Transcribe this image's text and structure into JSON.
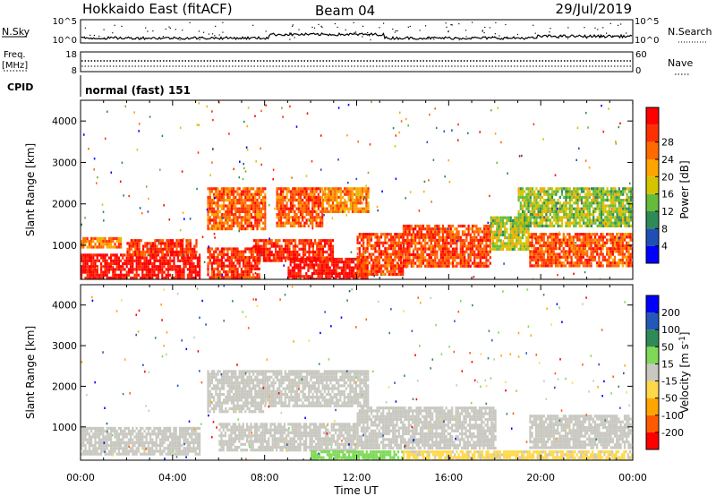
{
  "header": {
    "station": "Hokkaido East (fitACF)",
    "beam": "Beam 04",
    "date": "29/Jul/2019"
  },
  "summary_panel": {
    "nsky_label": "N.Sky",
    "nsearch_label": "N.Search",
    "freq_label_line1": "Freq.",
    "freq_label_line2": "[MHz]",
    "nave_label": "Nave",
    "cpid_label": "CPID",
    "cpid_value": "normal (fast) 151",
    "noise_top_tick": "10^5",
    "noise_bottom_tick": "10^0",
    "freq_ticks": [
      "18",
      "8"
    ],
    "nave_ticks": [
      "60",
      "0"
    ]
  },
  "colors": {
    "power_scale": [
      "#0000ff",
      "#1f4fb5",
      "#2e8b57",
      "#66bb3a",
      "#d4c400",
      "#ffa500",
      "#ff6a00",
      "#ff3000",
      "#ff0000"
    ],
    "velocity_scale": [
      "#ff0000",
      "#ff5a00",
      "#ffa500",
      "#ffd84a",
      "#c8c8c0",
      "#7ed957",
      "#2e8b57",
      "#2458b8",
      "#0000ff"
    ],
    "ground_scatter": "#c8c8c0"
  },
  "chart_data": [
    {
      "type": "heatmap",
      "title": "",
      "xlabel": "Time UT",
      "ylabel": "Slant Range [km]",
      "x_ticks": [
        "00:00",
        "04:00",
        "08:00",
        "12:00",
        "16:00",
        "20:00",
        "00:00"
      ],
      "y_ticks": [
        "1000",
        "2000",
        "3000",
        "4000"
      ],
      "xlim": [
        0,
        24
      ],
      "ylim": [
        180,
        4500
      ],
      "colorbar_label": "Power [dB]",
      "colorbar_ticks": [
        "4",
        "8",
        "12",
        "16",
        "20",
        "24",
        "28"
      ],
      "colorbar_range": [
        0,
        32
      ],
      "regions": [
        {
          "t0": 0.0,
          "t1": 5.2,
          "r0": 180,
          "r1": 800,
          "value": 30
        },
        {
          "t0": 0.0,
          "t1": 1.8,
          "r0": 950,
          "r1": 1200,
          "value": 22
        },
        {
          "t0": 2.0,
          "t1": 5.0,
          "r0": 750,
          "r1": 1150,
          "value": 27
        },
        {
          "t0": 5.5,
          "t1": 7.8,
          "r0": 200,
          "r1": 950,
          "value": 27
        },
        {
          "t0": 5.5,
          "t1": 8.0,
          "r0": 1400,
          "r1": 2400,
          "value": 24
        },
        {
          "t0": 8.5,
          "t1": 10.5,
          "r0": 1500,
          "r1": 2400,
          "value": 25
        },
        {
          "t0": 10.5,
          "t1": 12.5,
          "r0": 1800,
          "r1": 2400,
          "value": 22
        },
        {
          "t0": 7.5,
          "t1": 11.0,
          "r0": 650,
          "r1": 1150,
          "value": 28
        },
        {
          "t0": 9.0,
          "t1": 12.5,
          "r0": 200,
          "r1": 700,
          "value": 30
        },
        {
          "t0": 12.0,
          "t1": 14.0,
          "r0": 300,
          "r1": 1300,
          "value": 26
        },
        {
          "t0": 14.0,
          "t1": 17.8,
          "r0": 500,
          "r1": 1500,
          "value": 26
        },
        {
          "t0": 17.8,
          "t1": 19.5,
          "r0": 900,
          "r1": 1700,
          "value": 15
        },
        {
          "t0": 19.5,
          "t1": 24.0,
          "r0": 500,
          "r1": 1300,
          "value": 25
        },
        {
          "t0": 19.0,
          "t1": 24.0,
          "r0": 1500,
          "r1": 2400,
          "value": 14
        }
      ]
    },
    {
      "type": "heatmap",
      "title": "",
      "xlabel": "Time UT",
      "ylabel": "Slant Range [km]",
      "x_ticks": [
        "00:00",
        "04:00",
        "08:00",
        "12:00",
        "16:00",
        "20:00",
        "00:00"
      ],
      "y_ticks": [
        "1000",
        "2000",
        "3000",
        "4000"
      ],
      "xlim": [
        0,
        24
      ],
      "ylim": [
        180,
        4500
      ],
      "colorbar_label": "Velocity [m s-1]",
      "colorbar_label_main": "Velocity [m s",
      "colorbar_label_sup": "-1",
      "colorbar_label_end": "]",
      "colorbar_ticks": [
        "-200",
        "-100",
        "-50",
        "-15",
        "15",
        "50",
        "100",
        "200"
      ],
      "colorbar_range": [
        -250,
        250
      ],
      "regions": [
        {
          "t0": 0.0,
          "t1": 5.2,
          "r0": 300,
          "r1": 1000,
          "value": 0
        },
        {
          "t0": 5.5,
          "t1": 8.0,
          "r0": 1400,
          "r1": 2400,
          "value": 0
        },
        {
          "t0": 8.0,
          "t1": 12.5,
          "r0": 1500,
          "r1": 2400,
          "value": 0
        },
        {
          "t0": 6.0,
          "t1": 12.0,
          "r0": 400,
          "r1": 1100,
          "value": 0
        },
        {
          "t0": 10.0,
          "t1": 14.0,
          "r0": 180,
          "r1": 420,
          "value": 60
        },
        {
          "t0": 12.0,
          "t1": 18.0,
          "r0": 500,
          "r1": 1500,
          "value": 0
        },
        {
          "t0": 19.5,
          "t1": 24.0,
          "r0": 500,
          "r1": 1300,
          "value": 0
        },
        {
          "t0": 14.0,
          "t1": 24.0,
          "r0": 180,
          "r1": 420,
          "value": -40
        }
      ]
    }
  ]
}
